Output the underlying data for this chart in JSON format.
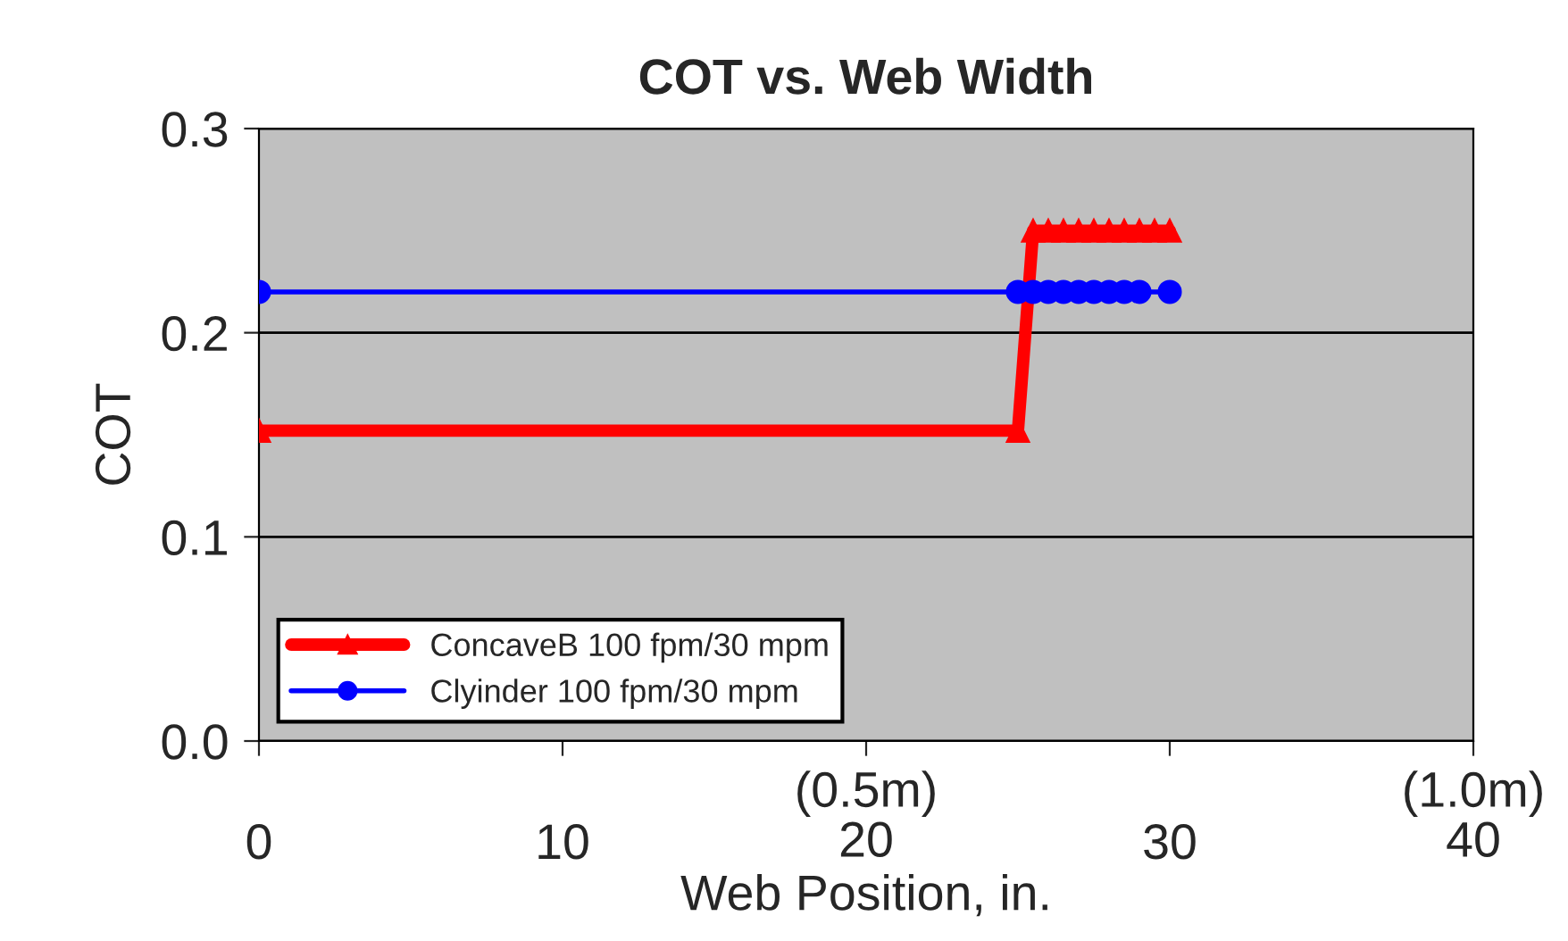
{
  "chart_data": {
    "type": "line",
    "title": "COT vs. Web Width",
    "xlabel": "Web Position, in.",
    "ylabel": "COT",
    "xlim": [
      0,
      40
    ],
    "xticks": [
      0,
      10,
      {
        "value": 20,
        "label": "(0.5m)\n20"
      },
      30,
      {
        "value": 40,
        "label": "(1.0m)\n40"
      }
    ],
    "ylim": [
      0,
      0.3
    ],
    "yticks": [
      {
        "value": 0,
        "label": "0.0"
      },
      {
        "value": 0.1,
        "label": "0.1"
      },
      {
        "value": 0.2,
        "label": "0.2"
      },
      {
        "value": 0.3,
        "label": "0.3"
      }
    ],
    "grid": "y",
    "legend": "bottom left",
    "line_style": "solid",
    "series": [
      {
        "name": "ConcaveB 100 fpm/30 mpm",
        "color": "#ff0000",
        "marker": "triangle",
        "x": [
          0,
          25,
          25.5,
          26,
          26.5,
          27,
          27.5,
          28,
          28.5,
          29,
          29.5,
          30
        ],
        "values": [
          0.152,
          0.152,
          0.25,
          0.25,
          0.25,
          0.25,
          0.25,
          0.25,
          0.25,
          0.25,
          0.25,
          0.25
        ]
      },
      {
        "name": "Clyinder 100 fpm/30 mpm",
        "color": "#0000ff",
        "marker": "circle",
        "x": [
          0,
          25,
          25.5,
          26,
          26.5,
          27,
          27.5,
          28,
          28.5,
          29,
          30
        ],
        "values": [
          0.22,
          0.22,
          0.22,
          0.22,
          0.22,
          0.22,
          0.22,
          0.22,
          0.22,
          0.22,
          0.22
        ]
      }
    ]
  }
}
